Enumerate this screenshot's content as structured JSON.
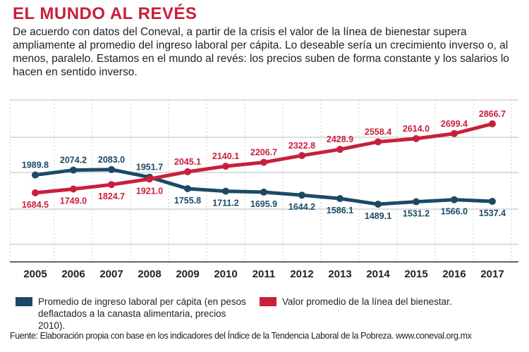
{
  "title": "EL MUNDO AL REVÉS",
  "intro": "De acuerdo con datos del Coneval, a partir de la crisis el valor de la línea de bienestar supera ampliamente al promedio del ingreso laboral per cápita. Lo deseable sería un crecimiento inverso o, al menos, paralelo. Estamos en el mundo al revés: los precios suben de forma constante y los salarios lo hacen en sentido inverso.",
  "source": "Fuente: Elaboración propia con base en los indicadores del Índice de la Tendencia Laboral de la Pobreza. www.coneval.org.mx",
  "chart_data": {
    "type": "line",
    "title": "EL MUNDO AL REVÉS",
    "xlabel": "",
    "ylabel": "",
    "x": [
      "2005",
      "2006",
      "2007",
      "2008",
      "2009",
      "2010",
      "2011",
      "2012",
      "2013",
      "2014",
      "2015",
      "2016",
      "2017"
    ],
    "ylim": [
      500,
      3300
    ],
    "grid": true,
    "legend_placement": "bottom",
    "series": [
      {
        "name": "Promedio de ingreso laboral per cápita (en pesos deflactados a la canasta alimentaria, precios 2010).",
        "color": "#1c4a66",
        "values": [
          1989.8,
          2074.2,
          2083.0,
          1951.7,
          1755.8,
          1711.2,
          1695.9,
          1644.2,
          1586.1,
          1489.1,
          1531.2,
          1566.0,
          1537.4
        ],
        "labels": [
          "1989.8",
          "2074.2",
          "2083.0",
          "1951.7",
          "1755.8",
          "1711.2",
          "1695.9",
          "1644.2",
          "1586.1",
          "1489.1",
          "1531.2",
          "1566.0",
          "1537.4"
        ]
      },
      {
        "name": "Valor promedio de la línea del bienestar.",
        "color": "#c8203c",
        "values": [
          1684.5,
          1749.0,
          1824.7,
          1921.0,
          2045.1,
          2140.1,
          2206.7,
          2322.8,
          2428.9,
          2558.4,
          2614.0,
          2699.4,
          2866.7
        ],
        "labels": [
          "1684.5",
          "1749.0",
          "1824.7",
          "1921.0",
          "2045.1",
          "2140.1",
          "2206.7",
          "2322.8",
          "2428.9",
          "2558.4",
          "2614.0",
          "2699.4",
          "2866.7"
        ]
      }
    ]
  }
}
